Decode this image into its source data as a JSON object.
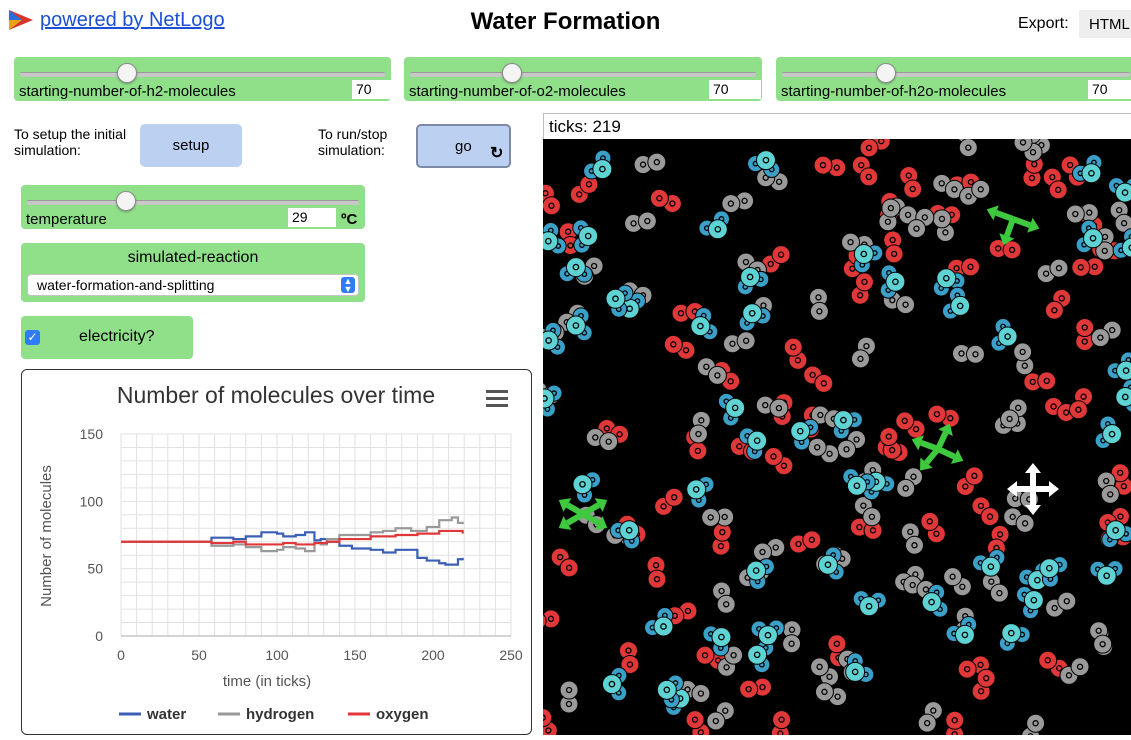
{
  "header": {
    "powered_label": "powered by NetLogo",
    "title": "Water Formation",
    "export_label": "Export:",
    "export_button": "HTML"
  },
  "sliders": [
    {
      "label": "starting-number-of-h2-molecules",
      "value": "70",
      "fraction": 0.3
    },
    {
      "label": "starting-number-of-o2-molecules",
      "value": "70",
      "fraction": 0.3
    },
    {
      "label": "starting-number-of-h2o-molecules",
      "value": "70",
      "fraction": 0.3
    }
  ],
  "setup": {
    "caption": "To setup the initial simulation:",
    "button": "setup"
  },
  "go": {
    "caption": "To run/stop simulation:",
    "button": "go",
    "icon": "forever-icon"
  },
  "temperature": {
    "label": "temperature",
    "value": "29",
    "unit": "ºC",
    "fraction": 0.29
  },
  "chooser": {
    "title": "simulated-reaction",
    "selected": "water-formation-and-splitting"
  },
  "switch": {
    "label": "electricity?",
    "checked": true
  },
  "ticks": {
    "label": "ticks: 219"
  },
  "colors": {
    "water": "#3b5fb5",
    "hydrogen": "#999999",
    "oxygen": "#e03838",
    "widget_green": "#90e08a",
    "button_blue": "#bcd1f2"
  },
  "chart_data": {
    "type": "line",
    "title": "Number of molecules over time",
    "xlabel": "time (in ticks)",
    "ylabel": "Number of molecules",
    "xlim": [
      0,
      250
    ],
    "ylim": [
      0,
      150
    ],
    "xticks": [
      0,
      50,
      100,
      150,
      200,
      250
    ],
    "yticks": [
      0,
      50,
      100,
      150
    ],
    "grid": true,
    "legend": "bottom",
    "series": [
      {
        "name": "water",
        "color": "#3b5fb5",
        "x": [
          0,
          54,
          58,
          72,
          80,
          86,
          90,
          100,
          104,
          112,
          118,
          124,
          128,
          132,
          140,
          148,
          160,
          168,
          176,
          190,
          196,
          204,
          208,
          216,
          219
        ],
        "y": [
          70,
          70,
          73,
          72,
          74,
          74,
          77,
          76,
          74,
          75,
          77,
          71,
          72,
          70,
          67,
          65,
          64,
          62,
          64,
          58,
          56,
          54,
          53,
          57,
          58
        ]
      },
      {
        "name": "hydrogen",
        "color": "#999999",
        "x": [
          0,
          54,
          58,
          72,
          80,
          90,
          100,
          104,
          112,
          118,
          124,
          128,
          132,
          140,
          148,
          160,
          168,
          176,
          186,
          196,
          204,
          212,
          216,
          219
        ],
        "y": [
          70,
          70,
          67,
          68,
          66,
          63,
          64,
          66,
          65,
          63,
          69,
          68,
          72,
          75,
          75,
          77,
          78,
          80,
          78,
          81,
          86,
          88,
          84,
          83
        ]
      },
      {
        "name": "oxygen",
        "color": "#e03838",
        "x": [
          0,
          54,
          58,
          72,
          80,
          90,
          100,
          104,
          112,
          118,
          124,
          128,
          132,
          140,
          148,
          160,
          168,
          176,
          190,
          204,
          212,
          219
        ],
        "y": [
          70,
          70,
          69,
          70,
          68,
          68,
          68,
          69,
          68,
          68,
          69,
          69,
          70,
          72,
          72,
          74,
          74,
          75,
          76,
          78,
          78,
          76
        ]
      }
    ]
  }
}
